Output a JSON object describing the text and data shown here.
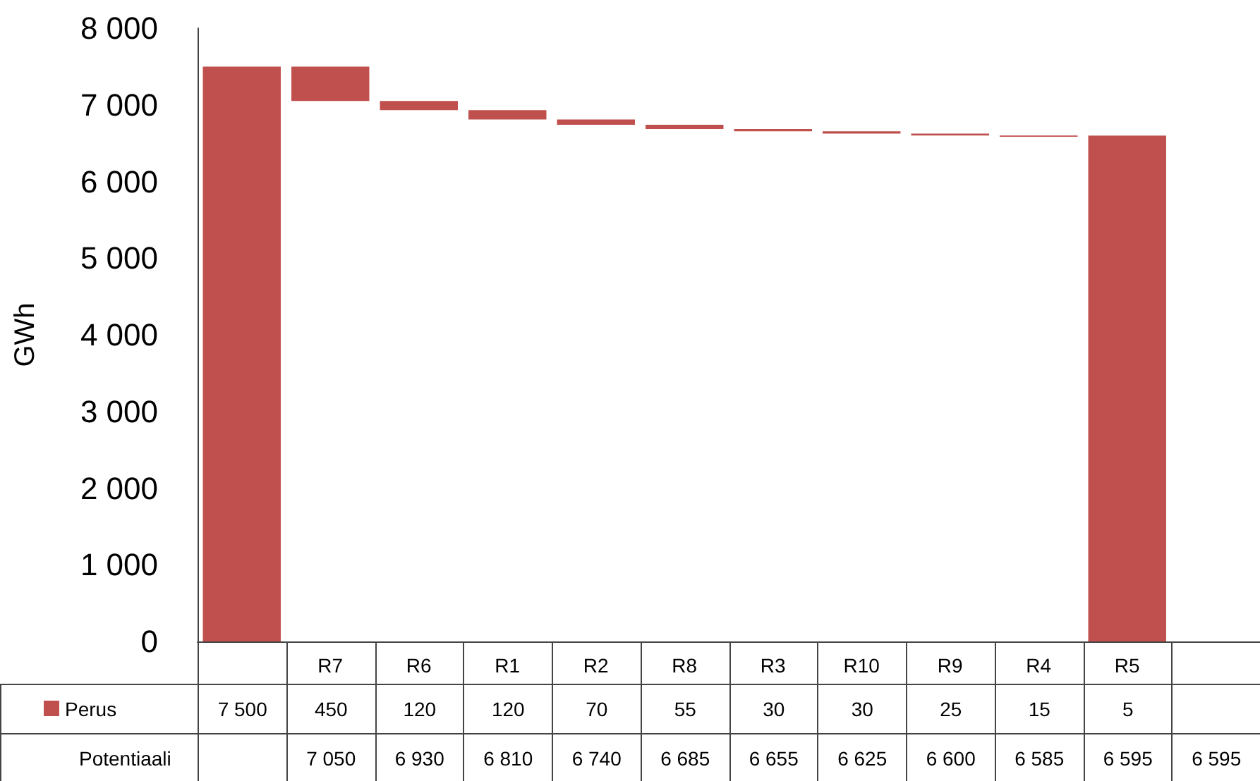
{
  "chart_data": {
    "type": "bar",
    "ylabel": "GWh",
    "categories": [
      null,
      "R7",
      "R6",
      "R1",
      "R2",
      "R8",
      "R3",
      "R10",
      "R9",
      "R4",
      "R5",
      null
    ],
    "series": [
      {
        "name": "Perus",
        "color": "#c0504d",
        "values": [
          7500,
          450,
          120,
          120,
          70,
          55,
          30,
          30,
          25,
          15,
          5,
          null
        ],
        "base": [
          0,
          7050,
          6930,
          6810,
          6740,
          6685,
          6655,
          6625,
          6600,
          6585,
          6595,
          null
        ],
        "value_labels": [
          "7 500",
          "450",
          "120",
          "120",
          "70",
          "55",
          "30",
          "30",
          "25",
          "15",
          "5",
          null
        ]
      },
      {
        "color": "#c0504d",
        "values": [
          null,
          null,
          null,
          null,
          null,
          null,
          null,
          null,
          null,
          null,
          6595,
          null
        ]
      }
    ],
    "annotations": [
      "Potentiaali",
      "7 050",
      "6 930",
      "6 810",
      "6 740",
      "6 685",
      "6 655",
      "6 625",
      "6 600",
      "6 585",
      "6 595",
      "6 595"
    ],
    "ylim": [
      0,
      8000
    ],
    "yticks": [
      {
        "value": 0,
        "label": "0"
      },
      {
        "value": 1000,
        "label": "1 000"
      },
      {
        "value": 2000,
        "label": "2 000"
      },
      {
        "value": 3000,
        "label": "3 000"
      },
      {
        "value": 4000,
        "label": "4 000"
      },
      {
        "value": 5000,
        "label": "5 000"
      },
      {
        "value": 6000,
        "label": "6 000"
      },
      {
        "value": 7000,
        "label": "7 000"
      },
      {
        "value": 8000,
        "label": "8 000"
      }
    ],
    "grid": false,
    "legend": "bottom"
  }
}
